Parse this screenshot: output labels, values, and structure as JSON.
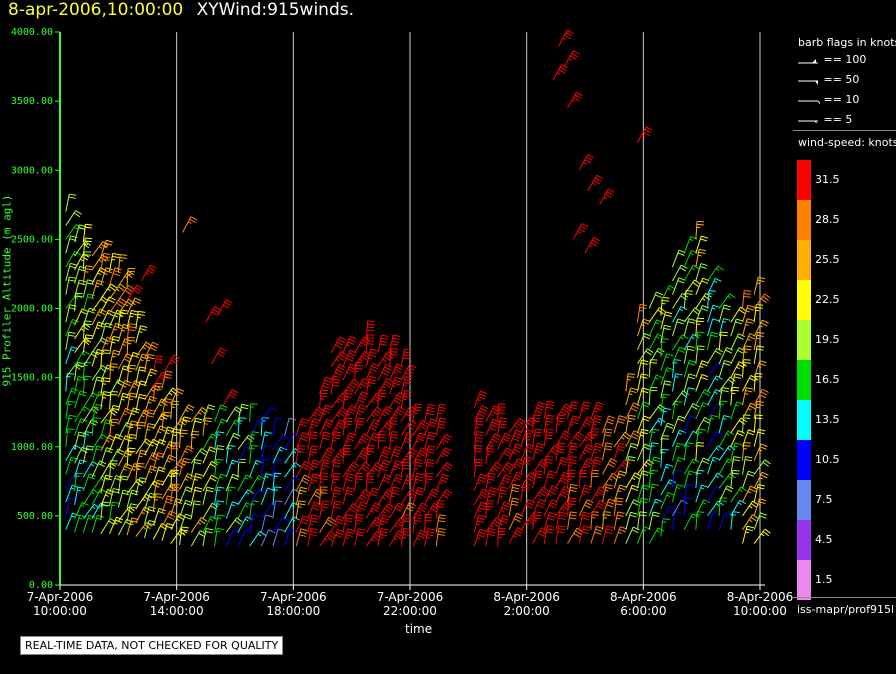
{
  "header": {
    "timestamp": "8-apr-2006,10:00:00",
    "plot_id": "XYWind:915winds."
  },
  "qc_notice": "REAL-TIME DATA, NOT CHECKED FOR QUALITY",
  "source_label": "iss-mapr/prof915l",
  "colors": {
    "background": "#000000",
    "y_axis": "#33ff33",
    "title_time": "#ffff33",
    "grid": "#d0d0d0"
  },
  "barb_legend": {
    "title": "barb flags in knots",
    "entries": [
      "== 100",
      "== 50",
      "== 10",
      "== 5"
    ]
  },
  "speed_legend": {
    "title": "wind-speed: knots",
    "bins": [
      {
        "label": "31.5",
        "color": "#ff0000"
      },
      {
        "label": "28.5",
        "color": "#ff8000"
      },
      {
        "label": "25.5",
        "color": "#ffb000"
      },
      {
        "label": "22.5",
        "color": "#ffff00"
      },
      {
        "label": "19.5",
        "color": "#aaff33"
      },
      {
        "label": "16.5",
        "color": "#00dd00"
      },
      {
        "label": "13.5",
        "color": "#00ffff"
      },
      {
        "label": "10.5",
        "color": "#0000ff"
      },
      {
        "label": "7.5",
        "color": "#6688ee"
      },
      {
        "label": "4.5",
        "color": "#9933ee"
      },
      {
        "label": "1.5",
        "color": "#ee88ee"
      }
    ]
  },
  "chart_data": {
    "type": "scatter",
    "title": "XYWind:915winds.",
    "xlabel": "time",
    "ylabel": "915 Profiler Altitude (m agl)",
    "ylim": [
      0,
      4000
    ],
    "x_ticks": [
      [
        "7-Apr-2006",
        "10:00:00"
      ],
      [
        "7-Apr-2006",
        "14:00:00"
      ],
      [
        "7-Apr-2006",
        "18:00:00"
      ],
      [
        "7-Apr-2006",
        "22:00:00"
      ],
      [
        "8-Apr-2006",
        "2:00:00"
      ],
      [
        "8-Apr-2006",
        "6:00:00"
      ],
      [
        "8-Apr-2006",
        "10:00:00"
      ]
    ],
    "x_tick_hours": [
      0,
      4,
      8,
      12,
      16,
      20,
      24
    ],
    "y_ticks": [
      "0.00",
      "500.00",
      "1000.00",
      "1500.00",
      "2000.00",
      "2500.00",
      "3000.00",
      "3500.00",
      "4000.00"
    ],
    "grid": "vertical lines at x ticks",
    "barb_columns": [
      {
        "hour": 0.2,
        "bottom": 400,
        "top": 2700,
        "speed": 13
      },
      {
        "hour": 0.5,
        "bottom": 380,
        "top": 2550,
        "speed": 15
      },
      {
        "hour": 0.8,
        "bottom": 380,
        "top": 2500,
        "speed": 16
      },
      {
        "hour": 1.1,
        "bottom": 380,
        "top": 2450,
        "speed": 17
      },
      {
        "hour": 1.4,
        "bottom": 370,
        "top": 2400,
        "speed": 19
      },
      {
        "hour": 1.7,
        "bottom": 370,
        "top": 2350,
        "speed": 20
      },
      {
        "hour": 2.0,
        "bottom": 360,
        "top": 2300,
        "speed": 21
      },
      {
        "hour": 2.3,
        "bottom": 360,
        "top": 2200,
        "speed": 22
      },
      {
        "hour": 2.6,
        "bottom": 350,
        "top": 1900,
        "speed": 22
      },
      {
        "hour": 2.9,
        "bottom": 340,
        "top": 1700,
        "speed": 23
      },
      {
        "hour": 3.2,
        "bottom": 330,
        "top": 1600,
        "speed": 24
      },
      {
        "hour": 3.5,
        "bottom": 320,
        "top": 1450,
        "speed": 24
      },
      {
        "hour": 3.8,
        "bottom": 300,
        "top": 1350,
        "speed": 25
      },
      {
        "hour": 4.1,
        "bottom": 290,
        "top": 1200,
        "speed": 22
      },
      {
        "hour": 4.5,
        "bottom": 280,
        "top": 1200,
        "speed": 20
      },
      {
        "hour": 4.9,
        "bottom": 280,
        "top": 1200,
        "speed": 18
      },
      {
        "hour": 5.3,
        "bottom": 280,
        "top": 1200,
        "speed": 16
      },
      {
        "hour": 5.7,
        "bottom": 280,
        "top": 1200,
        "speed": 15
      },
      {
        "hour": 6.1,
        "bottom": 280,
        "top": 1200,
        "speed": 13
      },
      {
        "hour": 6.5,
        "bottom": 280,
        "top": 1200,
        "speed": 12
      },
      {
        "hour": 6.9,
        "bottom": 280,
        "top": 1200,
        "speed": 11
      },
      {
        "hour": 7.3,
        "bottom": 280,
        "top": 1100,
        "speed": 10
      },
      {
        "hour": 7.7,
        "bottom": 280,
        "top": 1100,
        "speed": 10
      },
      {
        "hour": 8.1,
        "bottom": 280,
        "top": 1100,
        "speed": 27
      },
      {
        "hour": 8.5,
        "bottom": 280,
        "top": 1200,
        "speed": 30
      },
      {
        "hour": 8.9,
        "bottom": 280,
        "top": 1400,
        "speed": 32
      },
      {
        "hour": 9.3,
        "bottom": 280,
        "top": 1700,
        "speed": 33
      },
      {
        "hour": 9.7,
        "bottom": 280,
        "top": 1700,
        "speed": 33
      },
      {
        "hour": 10.1,
        "bottom": 280,
        "top": 1750,
        "speed": 33
      },
      {
        "hour": 10.5,
        "bottom": 280,
        "top": 1800,
        "speed": 33
      },
      {
        "hour": 10.9,
        "bottom": 280,
        "top": 1750,
        "speed": 33
      },
      {
        "hour": 11.3,
        "bottom": 280,
        "top": 1700,
        "speed": 33
      },
      {
        "hour": 11.7,
        "bottom": 280,
        "top": 1600,
        "speed": 33
      },
      {
        "hour": 12.1,
        "bottom": 280,
        "top": 1250,
        "speed": 32
      },
      {
        "hour": 12.5,
        "bottom": 280,
        "top": 1200,
        "speed": 32
      },
      {
        "hour": 12.9,
        "bottom": 280,
        "top": 1200,
        "speed": 32
      },
      {
        "hour": 14.2,
        "bottom": 280,
        "top": 1300,
        "speed": 33
      },
      {
        "hour": 14.6,
        "bottom": 280,
        "top": 1200,
        "speed": 33
      },
      {
        "hour": 15.0,
        "bottom": 280,
        "top": 1250,
        "speed": 33
      },
      {
        "hour": 15.4,
        "bottom": 300,
        "top": 1100,
        "speed": 32
      },
      {
        "hour": 15.8,
        "bottom": 400,
        "top": 1100,
        "speed": 33
      },
      {
        "hour": 16.2,
        "bottom": 300,
        "top": 1200,
        "speed": 33
      },
      {
        "hour": 16.6,
        "bottom": 300,
        "top": 1200,
        "speed": 33
      },
      {
        "hour": 17.0,
        "bottom": 300,
        "top": 1200,
        "speed": 33
      },
      {
        "hour": 17.4,
        "bottom": 300,
        "top": 1200,
        "speed": 32
      },
      {
        "hour": 17.8,
        "bottom": 300,
        "top": 1200,
        "speed": 32
      },
      {
        "hour": 18.2,
        "bottom": 300,
        "top": 1200,
        "speed": 31
      },
      {
        "hour": 18.6,
        "bottom": 300,
        "top": 1100,
        "speed": 28
      },
      {
        "hour": 19.0,
        "bottom": 300,
        "top": 1100,
        "speed": 26
      },
      {
        "hour": 19.4,
        "bottom": 300,
        "top": 1400,
        "speed": 22
      },
      {
        "hour": 19.8,
        "bottom": 300,
        "top": 1900,
        "speed": 18
      },
      {
        "hour": 20.2,
        "bottom": 300,
        "top": 2000,
        "speed": 15
      },
      {
        "hour": 20.6,
        "bottom": 350,
        "top": 2100,
        "speed": 14
      },
      {
        "hour": 21.0,
        "bottom": 400,
        "top": 2300,
        "speed": 12
      },
      {
        "hour": 21.4,
        "bottom": 400,
        "top": 2400,
        "speed": 13
      },
      {
        "hour": 21.8,
        "bottom": 400,
        "top": 2500,
        "speed": 16
      },
      {
        "hour": 22.2,
        "bottom": 400,
        "top": 2200,
        "speed": 11
      },
      {
        "hour": 22.6,
        "bottom": 400,
        "top": 2000,
        "speed": 14
      },
      {
        "hour": 23.0,
        "bottom": 400,
        "top": 1900,
        "speed": 17
      },
      {
        "hour": 23.4,
        "bottom": 300,
        "top": 2000,
        "speed": 21
      },
      {
        "hour": 23.8,
        "bottom": 300,
        "top": 2100,
        "speed": 22
      }
    ],
    "upper_barbs": [
      {
        "hour": 17.1,
        "alt": 3900,
        "speed": 33
      },
      {
        "hour": 17.3,
        "alt": 3750,
        "speed": 33
      },
      {
        "hour": 16.9,
        "alt": 3650,
        "speed": 33
      },
      {
        "hour": 17.4,
        "alt": 3450,
        "speed": 33
      },
      {
        "hour": 19.8,
        "alt": 3200,
        "speed": 33
      },
      {
        "hour": 17.8,
        "alt": 3000,
        "speed": 33
      },
      {
        "hour": 18.1,
        "alt": 2850,
        "speed": 33
      },
      {
        "hour": 18.5,
        "alt": 2750,
        "speed": 33
      },
      {
        "hour": 17.6,
        "alt": 2500,
        "speed": 33
      },
      {
        "hour": 18.0,
        "alt": 2400,
        "speed": 33
      },
      {
        "hour": 5.0,
        "alt": 1900,
        "speed": 32
      },
      {
        "hour": 5.4,
        "alt": 1950,
        "speed": 32
      },
      {
        "hour": 5.2,
        "alt": 1600,
        "speed": 32
      },
      {
        "hour": 5.6,
        "alt": 1300,
        "speed": 32
      },
      {
        "hour": 4.2,
        "alt": 2550,
        "speed": 27
      },
      {
        "hour": 2.8,
        "alt": 2200,
        "speed": 33
      },
      {
        "hour": 3.6,
        "alt": 1550,
        "speed": 33
      }
    ]
  }
}
